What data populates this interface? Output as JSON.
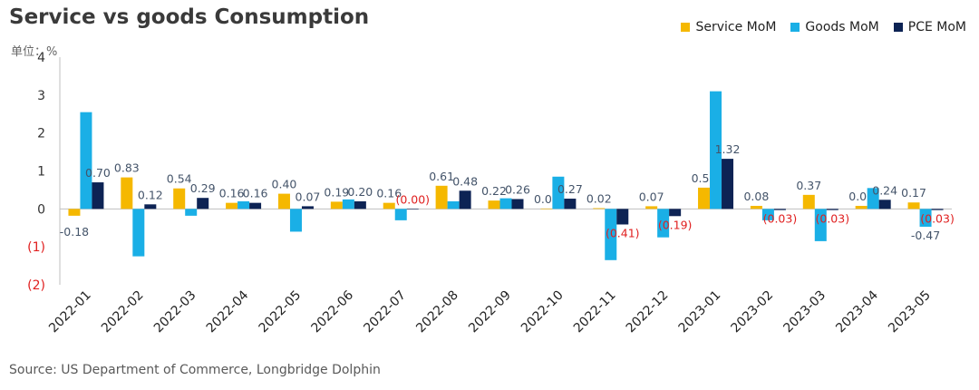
{
  "chart_data": {
    "type": "bar",
    "title": "Service vs goods Consumption",
    "unit_label": "单位：%",
    "source": "Source: US Department of Commerce, Longbridge Dolphin",
    "categories": [
      "2022-01",
      "2022-02",
      "2022-03",
      "2022-04",
      "2022-05",
      "2022-06",
      "2022-07",
      "2022-08",
      "2022-09",
      "2022-10",
      "2022-11",
      "2022-12",
      "2023-01",
      "2023-02",
      "2023-03",
      "2023-04",
      "2023-05"
    ],
    "series": [
      {
        "name": "Service MoM",
        "color": "#F5B800",
        "values": [
          -0.18,
          0.83,
          0.54,
          0.16,
          0.4,
          0.19,
          0.16,
          0.61,
          0.22,
          0.01,
          0.02,
          0.07,
          0.56,
          0.08,
          0.37,
          0.08,
          0.17
        ],
        "labels": [
          "-0.18",
          "0.83",
          "0.54",
          "0.16",
          "0.40",
          "0.19",
          "0.16",
          "0.61",
          "0.22",
          "0.01",
          "0.02",
          "0.07",
          "0.56",
          "0.08",
          "0.37",
          "0.08",
          "0.17"
        ]
      },
      {
        "name": "Goods MoM",
        "color": "#1AAFE6",
        "values": [
          2.55,
          -1.25,
          -0.18,
          0.2,
          -0.6,
          0.25,
          -0.3,
          0.2,
          0.28,
          0.85,
          -1.35,
          -0.75,
          3.1,
          -0.3,
          -0.85,
          0.55,
          -0.47
        ],
        "labels": [
          "",
          "",
          "",
          "",
          "",
          "",
          "",
          "",
          "",
          "",
          "",
          "",
          "",
          "",
          "",
          "",
          "-0.47"
        ]
      },
      {
        "name": "PCE MoM",
        "color": "#0D2354",
        "values": [
          0.7,
          0.12,
          0.29,
          0.16,
          0.07,
          0.2,
          0.0,
          0.48,
          0.26,
          0.27,
          -0.41,
          -0.19,
          1.32,
          -0.03,
          -0.03,
          0.24,
          -0.03
        ],
        "labels": [
          "0.70",
          "0.12",
          "0.29",
          "0.16",
          "0.07",
          "0.20",
          "(0.00)",
          "0.48",
          "0.26",
          "0.27",
          "(0.41)",
          "(0.19)",
          "1.32",
          "(0.03)",
          "(0.03)",
          "0.24",
          "(0.03)"
        ]
      }
    ],
    "yticks": [
      4,
      3,
      2,
      1,
      0,
      -1,
      -2
    ],
    "ytick_labels": [
      "4",
      "3",
      "2",
      "1",
      "0",
      "(1)",
      "(2)"
    ],
    "ylim": [
      -2,
      4
    ],
    "legend_position": "top-right",
    "grid": false
  },
  "colors": {
    "negative_label": "#E02020",
    "value_label": "#44546A",
    "axis": "#BFBFBF"
  }
}
